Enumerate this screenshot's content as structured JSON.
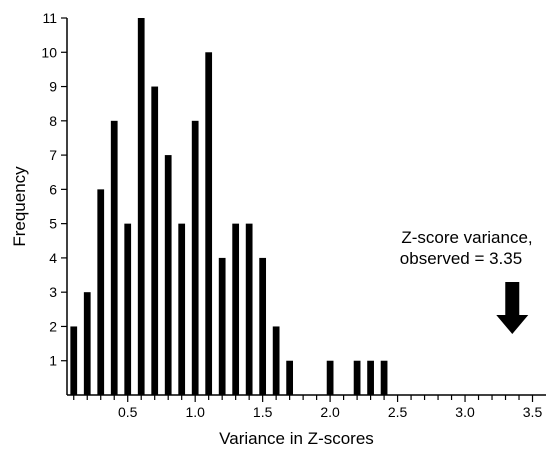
{
  "chart_data": {
    "type": "bar",
    "title": "",
    "xlabel": "Variance in Z-scores",
    "ylabel": "Frequency",
    "xlim": [
      0.05,
      3.6
    ],
    "ylim": [
      0,
      11
    ],
    "x_ticks": [
      "0.5",
      "1.0",
      "1.5",
      "2.0",
      "2.5",
      "3.0",
      "3.5"
    ],
    "x_tick_values": [
      0.5,
      1.0,
      1.5,
      2.0,
      2.5,
      3.0,
      3.5
    ],
    "y_ticks": [
      "1",
      "2",
      "3",
      "4",
      "5",
      "6",
      "7",
      "8",
      "9",
      "10",
      "11"
    ],
    "y_tick_values": [
      1,
      2,
      3,
      4,
      5,
      6,
      7,
      8,
      9,
      10,
      11
    ],
    "bin_width": 0.05,
    "bars": [
      {
        "x": 0.1,
        "value": 2
      },
      {
        "x": 0.2,
        "value": 3
      },
      {
        "x": 0.3,
        "value": 6
      },
      {
        "x": 0.4,
        "value": 8
      },
      {
        "x": 0.5,
        "value": 5
      },
      {
        "x": 0.6,
        "value": 11
      },
      {
        "x": 0.7,
        "value": 9
      },
      {
        "x": 0.8,
        "value": 7
      },
      {
        "x": 0.9,
        "value": 5
      },
      {
        "x": 1.0,
        "value": 8
      },
      {
        "x": 1.1,
        "value": 10
      },
      {
        "x": 1.2,
        "value": 4
      },
      {
        "x": 1.3,
        "value": 5
      },
      {
        "x": 1.4,
        "value": 5
      },
      {
        "x": 1.5,
        "value": 4
      },
      {
        "x": 1.6,
        "value": 2
      },
      {
        "x": 1.7,
        "value": 1
      },
      {
        "x": 2.0,
        "value": 1
      },
      {
        "x": 2.2,
        "value": 1
      },
      {
        "x": 2.3,
        "value": 1
      },
      {
        "x": 2.4,
        "value": 1
      }
    ],
    "annotation": {
      "line1": "Z-score variance,",
      "line2": "observed = 3.35",
      "x": 3.35,
      "marker": "down-arrow"
    },
    "grid": false,
    "colors": {
      "bar": "#000000",
      "axis": "#000000"
    }
  }
}
